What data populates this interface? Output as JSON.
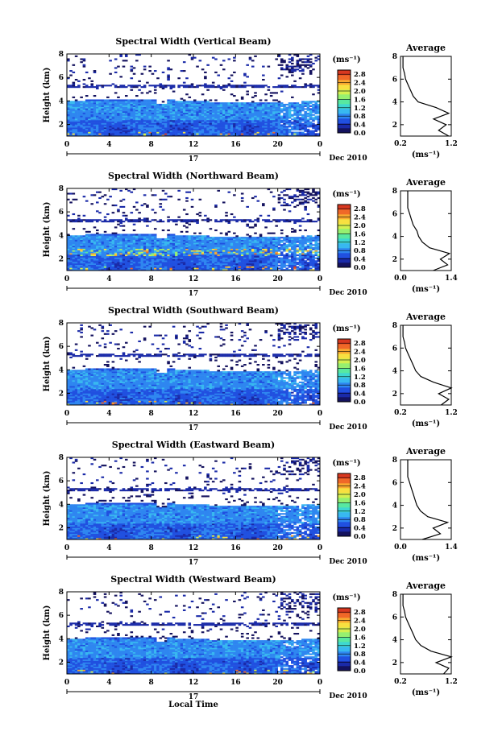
{
  "date_label": "Dec 2010",
  "day_label": "17",
  "x_axis_label": "Local Time",
  "y_axis_label": "Height (km)",
  "colorbar_unit": "(ms⁻¹)",
  "avg_title": "Average",
  "avg_xlabel": "(ms⁻¹)",
  "colormap": [
    "#14125e",
    "#1a2aa8",
    "#2050e0",
    "#2e86f0",
    "#38b8f0",
    "#3ed8d0",
    "#58e8a0",
    "#96f070",
    "#d4f050",
    "#f8e040",
    "#f8a830",
    "#f06828",
    "#d83820"
  ],
  "chart_data": [
    {
      "type": "heatmap",
      "title": "Spectral Width (Vertical Beam)",
      "x_ticks": [
        "0",
        "4",
        "8",
        "12",
        "16",
        "20",
        "0"
      ],
      "y_ticks": [
        "2",
        "4",
        "6",
        "8"
      ],
      "xlim": [
        0,
        24
      ],
      "ylim": [
        1,
        8
      ],
      "colorbar_ticks": [
        "0.0",
        "0.4",
        "0.8",
        "1.2",
        "1.6",
        "2.0",
        "2.4",
        "2.8"
      ],
      "colorbar_range": [
        0,
        3.0
      ],
      "average_profile": {
        "x_ticks": [
          "0.2",
          "1.2"
        ],
        "xlim": [
          0.2,
          1.2
        ],
        "y_ticks": [
          "2",
          "4",
          "6",
          "8"
        ],
        "ylim": [
          1,
          8
        ],
        "height_km": [
          1.0,
          1.5,
          2.0,
          2.5,
          3.0,
          3.5,
          4.0,
          4.5,
          5.0,
          5.5,
          6.0,
          6.5,
          7.0,
          7.5,
          8.0
        ],
        "width_ms": [
          1.15,
          0.95,
          1.1,
          0.85,
          1.15,
          0.9,
          0.55,
          0.45,
          0.4,
          0.35,
          0.3,
          0.28,
          0.25,
          0.25,
          0.25
        ]
      }
    },
    {
      "type": "heatmap",
      "title": "Spectral Width (Northward Beam)",
      "x_ticks": [
        "0",
        "4",
        "8",
        "12",
        "16",
        "20",
        "0"
      ],
      "y_ticks": [
        "2",
        "4",
        "6",
        "8"
      ],
      "xlim": [
        0,
        24
      ],
      "ylim": [
        1,
        8
      ],
      "colorbar_ticks": [
        "0.0",
        "0.4",
        "0.8",
        "1.2",
        "1.6",
        "2.0",
        "2.4",
        "2.8"
      ],
      "colorbar_range": [
        0,
        3.0
      ],
      "average_profile": {
        "x_ticks": [
          "0.0",
          "1.4"
        ],
        "xlim": [
          0.0,
          1.4
        ],
        "y_ticks": [
          "2",
          "4",
          "6",
          "8"
        ],
        "ylim": [
          1,
          8
        ],
        "height_km": [
          1.0,
          1.5,
          2.0,
          2.5,
          3.0,
          3.5,
          4.0,
          4.5,
          5.0,
          5.5,
          6.0,
          6.5,
          7.0,
          7.5,
          8.0
        ],
        "width_ms": [
          0.9,
          1.3,
          1.1,
          1.35,
          0.8,
          0.6,
          0.5,
          0.45,
          0.35,
          0.3,
          0.25,
          0.2,
          0.2,
          0.2,
          0.2
        ]
      }
    },
    {
      "type": "heatmap",
      "title": "Spectral Width (Southward Beam)",
      "x_ticks": [
        "0",
        "4",
        "8",
        "12",
        "16",
        "20",
        "0"
      ],
      "y_ticks": [
        "2",
        "4",
        "6",
        "8"
      ],
      "xlim": [
        0,
        24
      ],
      "ylim": [
        1,
        8
      ],
      "colorbar_ticks": [
        "0.0",
        "0.4",
        "0.8",
        "1.2",
        "1.6",
        "2.0",
        "2.4",
        "2.8"
      ],
      "colorbar_range": [
        0,
        3.0
      ],
      "average_profile": {
        "x_ticks": [
          "0.2",
          "1.2"
        ],
        "xlim": [
          0.2,
          1.2
        ],
        "y_ticks": [
          "2",
          "4",
          "6",
          "8"
        ],
        "ylim": [
          1,
          8
        ],
        "height_km": [
          1.0,
          1.5,
          2.0,
          2.5,
          3.0,
          3.5,
          4.0,
          4.5,
          5.0,
          5.5,
          6.0,
          6.5,
          7.0,
          7.5,
          8.0
        ],
        "width_ms": [
          1.0,
          1.15,
          0.95,
          1.2,
          0.85,
          0.6,
          0.5,
          0.45,
          0.4,
          0.35,
          0.3,
          0.28,
          0.25,
          0.25,
          0.25
        ]
      }
    },
    {
      "type": "heatmap",
      "title": "Spectral Width (Eastward Beam)",
      "x_ticks": [
        "0",
        "4",
        "8",
        "12",
        "16",
        "20",
        "0"
      ],
      "y_ticks": [
        "2",
        "4",
        "6",
        "8"
      ],
      "xlim": [
        0,
        24
      ],
      "ylim": [
        1,
        8
      ],
      "colorbar_ticks": [
        "0.0",
        "0.4",
        "0.8",
        "1.2",
        "1.6",
        "2.0",
        "2.4",
        "2.8"
      ],
      "colorbar_range": [
        0,
        3.0
      ],
      "average_profile": {
        "x_ticks": [
          "0.0",
          "1.4"
        ],
        "xlim": [
          0.0,
          1.4
        ],
        "y_ticks": [
          "2",
          "4",
          "6",
          "8"
        ],
        "ylim": [
          1,
          8
        ],
        "height_km": [
          1.0,
          1.5,
          2.0,
          2.5,
          3.0,
          3.5,
          4.0,
          4.5,
          5.0,
          5.5,
          6.0,
          6.5,
          7.0,
          7.5,
          8.0
        ],
        "width_ms": [
          0.6,
          1.1,
          0.9,
          1.3,
          0.75,
          0.55,
          0.45,
          0.4,
          0.35,
          0.3,
          0.25,
          0.2,
          0.2,
          0.2,
          0.2
        ]
      }
    },
    {
      "type": "heatmap",
      "title": "Spectral Width (Westward Beam)",
      "x_ticks": [
        "0",
        "4",
        "8",
        "12",
        "16",
        "20",
        "0"
      ],
      "y_ticks": [
        "2",
        "4",
        "6",
        "8"
      ],
      "xlim": [
        0,
        24
      ],
      "ylim": [
        1,
        8
      ],
      "colorbar_ticks": [
        "0.0",
        "0.4",
        "0.8",
        "1.2",
        "1.6",
        "2.0",
        "2.4",
        "2.8"
      ],
      "colorbar_range": [
        0,
        3.0
      ],
      "average_profile": {
        "x_ticks": [
          "0.2",
          "1.2"
        ],
        "xlim": [
          0.2,
          1.2
        ],
        "y_ticks": [
          "2",
          "4",
          "6",
          "8"
        ],
        "ylim": [
          1,
          8
        ],
        "height_km": [
          1.0,
          1.5,
          2.0,
          2.5,
          3.0,
          3.5,
          4.0,
          4.5,
          5.0,
          5.5,
          6.0,
          6.5,
          7.0,
          7.5,
          8.0
        ],
        "width_ms": [
          1.05,
          1.15,
          0.9,
          1.2,
          0.8,
          0.6,
          0.5,
          0.45,
          0.4,
          0.35,
          0.3,
          0.28,
          0.25,
          0.25,
          0.25
        ]
      }
    }
  ]
}
